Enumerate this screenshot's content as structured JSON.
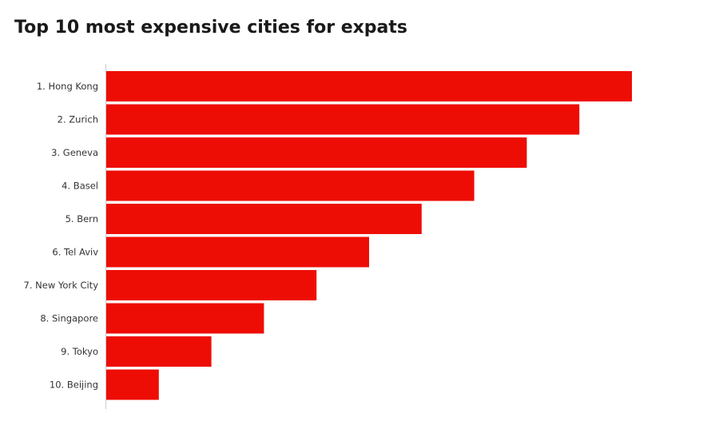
{
  "chart_data": {
    "type": "bar",
    "orientation": "horizontal",
    "title": "Top 10 most expensive cities for expats",
    "categories": [
      "1. Hong Kong",
      "2. Zurich",
      "3. Geneva",
      "4. Basel",
      "5. Bern",
      "6. Tel Aviv",
      "7. New York City",
      "8. Singapore",
      "9. Tokyo",
      "10. Beijing"
    ],
    "values": [
      10,
      9,
      8,
      7,
      6,
      5,
      4,
      3,
      2,
      1
    ],
    "xlim": [
      0,
      10
    ],
    "grid": false,
    "bar_color": "#ee0d05",
    "axis_color": "#cccccc"
  }
}
